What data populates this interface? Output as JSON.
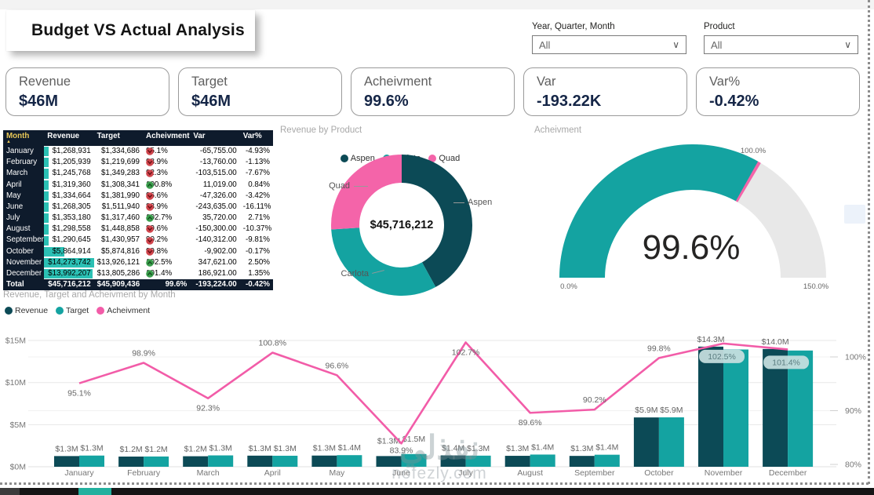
{
  "page": {
    "title": "Budget VS Actual Analysis",
    "watermark_arabic": "نفذلي",
    "watermark_domain": "nofezly.com"
  },
  "filters": [
    {
      "label": "Year, Quarter, Month",
      "value": "All"
    },
    {
      "label": "Product",
      "value": "All"
    }
  ],
  "kpis": [
    {
      "label": "Revenue",
      "value": "$46M"
    },
    {
      "label": "Target",
      "value": "$46M"
    },
    {
      "label": "Acheivment",
      "value": "99.6%"
    },
    {
      "label": "Var",
      "value": "-193.22K"
    },
    {
      "label": "Var%",
      "value": "-0.42%"
    }
  ],
  "table": {
    "columns": [
      "Month",
      "Revenue",
      "Target",
      "Acheivment",
      "Var",
      "Var%"
    ],
    "sort_column": "Month",
    "sort_indicator": "▲",
    "rows": [
      {
        "month": "January",
        "revenue": "$1,268,931",
        "target": "$1,334,686",
        "ach": "95.1%",
        "dir": "down",
        "var": "-65,755.00",
        "varp": "-4.93%",
        "bar": 8.9
      },
      {
        "month": "February",
        "revenue": "$1,205,939",
        "target": "$1,219,699",
        "ach": "98.9%",
        "dir": "down",
        "var": "-13,760.00",
        "varp": "-1.13%",
        "bar": 8.4
      },
      {
        "month": "March",
        "revenue": "$1,245,768",
        "target": "$1,349,283",
        "ach": "92.3%",
        "dir": "down",
        "var": "-103,515.00",
        "varp": "-7.67%",
        "bar": 8.7
      },
      {
        "month": "April",
        "revenue": "$1,319,360",
        "target": "$1,308,341",
        "ach": "100.8%",
        "dir": "up",
        "var": "11,019.00",
        "varp": "0.84%",
        "bar": 9.2
      },
      {
        "month": "May",
        "revenue": "$1,334,664",
        "target": "$1,381,990",
        "ach": "96.6%",
        "dir": "down",
        "var": "-47,326.00",
        "varp": "-3.42%",
        "bar": 9.4
      },
      {
        "month": "June",
        "revenue": "$1,268,305",
        "target": "$1,511,940",
        "ach": "83.9%",
        "dir": "down",
        "var": "-243,635.00",
        "varp": "-16.11%",
        "bar": 8.9
      },
      {
        "month": "July",
        "revenue": "$1,353,180",
        "target": "$1,317,460",
        "ach": "102.7%",
        "dir": "up",
        "var": "35,720.00",
        "varp": "2.71%",
        "bar": 9.5
      },
      {
        "month": "August",
        "revenue": "$1,298,558",
        "target": "$1,448,858",
        "ach": "89.6%",
        "dir": "down",
        "var": "-150,300.00",
        "varp": "-10.37%",
        "bar": 9.1
      },
      {
        "month": "September",
        "revenue": "$1,290,645",
        "target": "$1,430,957",
        "ach": "90.2%",
        "dir": "down",
        "var": "-140,312.00",
        "varp": "-9.81%",
        "bar": 9.0
      },
      {
        "month": "October",
        "revenue": "$5,864,914",
        "target": "$5,874,816",
        "ach": "99.8%",
        "dir": "down",
        "var": "-9,902.00",
        "varp": "-0.17%",
        "bar": 41.1
      },
      {
        "month": "November",
        "revenue": "$14,273,742",
        "target": "$13,926,121",
        "ach": "102.5%",
        "dir": "up",
        "var": "347,621.00",
        "varp": "2.50%",
        "bar": 100
      },
      {
        "month": "December",
        "revenue": "$13,992,207",
        "target": "$13,805,286",
        "ach": "101.4%",
        "dir": "up",
        "var": "186,921.00",
        "varp": "1.35%",
        "bar": 98
      }
    ],
    "total": {
      "month": "Total",
      "revenue": "$45,716,212",
      "target": "$45,909,436",
      "ach": "99.6%",
      "var": "-193,224.00",
      "varp": "-0.42%"
    }
  },
  "chart_data": [
    {
      "id": "revenue_by_product",
      "type": "pie",
      "subtype": "donut",
      "title": "Revenue by Product",
      "legend_position": "top",
      "categories": [
        "Aspen",
        "Carlota",
        "Quad"
      ],
      "shares_est": [
        0.42,
        0.32,
        0.26
      ],
      "center_label": "$45,716,212",
      "colors": [
        "#0C4A56",
        "#14A3A1",
        "#F464A9"
      ]
    },
    {
      "id": "acheivment_gauge",
      "type": "gauge",
      "title": "Acheivment",
      "value": 99.6,
      "value_label": "99.6%",
      "min": 0,
      "max": 150,
      "min_label": "0.0%",
      "max_label": "150.0%",
      "target": 100,
      "target_label": "100.0%",
      "fill_color": "#14A3A1",
      "track_color": "#e8e8e8",
      "target_color": "#F464A9"
    },
    {
      "id": "revenue_target_ach_by_month",
      "type": "bar",
      "subtype": "clustered-bar-with-line",
      "title": "Revenue, Target and Acheivment by Month",
      "legend_position": "top-left",
      "grid": true,
      "categories": [
        "January",
        "February",
        "March",
        "April",
        "May",
        "June",
        "July",
        "August",
        "September",
        "October",
        "November",
        "December"
      ],
      "left_axis": {
        "ticks": [
          "$0M",
          "$5M",
          "$10M",
          "$15M"
        ],
        "range": [
          0,
          15
        ],
        "unit": "$M"
      },
      "right_axis": {
        "ticks": [
          "80%",
          "90%",
          "100%"
        ],
        "range": [
          80,
          109
        ],
        "unit": "%"
      },
      "series": [
        {
          "name": "Revenue",
          "type": "bar",
          "axis": "left",
          "color": "#0C4A56",
          "values": [
            1.27,
            1.21,
            1.25,
            1.32,
            1.33,
            1.27,
            1.35,
            1.3,
            1.29,
            5.86,
            14.27,
            13.99
          ],
          "labels": [
            "$1.3M",
            "$1.2M",
            "$1.2M",
            "$1.3M",
            "$1.3M",
            "$1.3M",
            "$1.4M",
            "$1.3M",
            "$1.3M",
            "$5.9M",
            "$14.3M",
            "$14.0M"
          ]
        },
        {
          "name": "Target",
          "type": "bar",
          "axis": "left",
          "color": "#14A3A1",
          "values": [
            1.33,
            1.22,
            1.35,
            1.31,
            1.38,
            1.51,
            1.32,
            1.45,
            1.43,
            5.87,
            13.93,
            13.81
          ],
          "labels": [
            "$1.3M",
            "$1.2M",
            "$1.3M",
            "$1.3M",
            "$1.4M",
            "$1.5M",
            "$1.3M",
            "$1.4M",
            "$1.4M",
            "$5.9M",
            "",
            ""
          ]
        },
        {
          "name": "Acheivment",
          "type": "line",
          "axis": "right",
          "color": "#F25CA8",
          "values": [
            95.1,
            98.9,
            92.3,
            100.8,
            96.6,
            83.9,
            102.7,
            89.6,
            90.2,
            99.8,
            102.5,
            101.4
          ],
          "labels": [
            "95.1%",
            "98.9%",
            "92.3%",
            "100.8%",
            "96.6%",
            "83.9%",
            "102.7%",
            "89.6%",
            "90.2%",
            "99.8%",
            "102.5%",
            "101.4%"
          ],
          "label_positions": [
            "below",
            "above",
            "below",
            "above",
            "above",
            "below",
            "below",
            "below",
            "above",
            "above",
            "bubble",
            "bubble"
          ]
        }
      ]
    }
  ]
}
